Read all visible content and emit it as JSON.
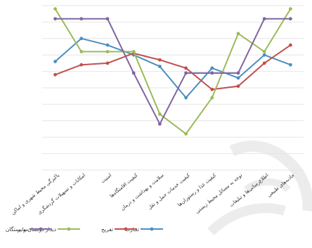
{
  "chart_data": {
    "type": "line",
    "title": "",
    "xlabel": "",
    "ylabel": "",
    "ylim": [
      0,
      10
    ],
    "grid": true,
    "legend_position": "bottom",
    "categories": [
      "پاکیزگی محیط شهری و اماکن",
      "امکانات و تسهیلات گردشگری",
      "امنیت",
      "کیفیت اقامتگاه‌ها",
      "سلامت و بهداشت و درمان",
      "کیفیت خدمات حمل و نقل",
      "کیفیت غذا و رستوران‌ها",
      "توجه به مسائل محیط زیستی",
      "اطلاع‌رسانی‌ها و تبلیغات",
      "جاذبه‌های طبیعی"
    ],
    "series": [
      {
        "name": "تجارت",
        "color": "#4a8fc1",
        "values": [
          6.6,
          8.0,
          7.6,
          7.0,
          6.3,
          4.4,
          6.2,
          5.6,
          7.0,
          6.4
        ]
      },
      {
        "name": "تفریح",
        "color": "#c0504d",
        "values": [
          5.8,
          6.4,
          6.5,
          7.1,
          6.7,
          6.2,
          4.9,
          5.1,
          6.5,
          7.6
        ]
      },
      {
        "name": "دیدار دوستان و بستگان",
        "color": "#9bbb59",
        "values": [
          9.8,
          7.2,
          7.2,
          7.2,
          3.4,
          2.2,
          4.4,
          8.3,
          7.2,
          9.8
        ]
      },
      {
        "name": "سایر",
        "color": "#8064a2",
        "values": [
          9.2,
          9.2,
          9.2,
          5.9,
          2.8,
          5.9,
          5.9,
          5.9,
          9.2,
          9.2
        ]
      }
    ]
  }
}
